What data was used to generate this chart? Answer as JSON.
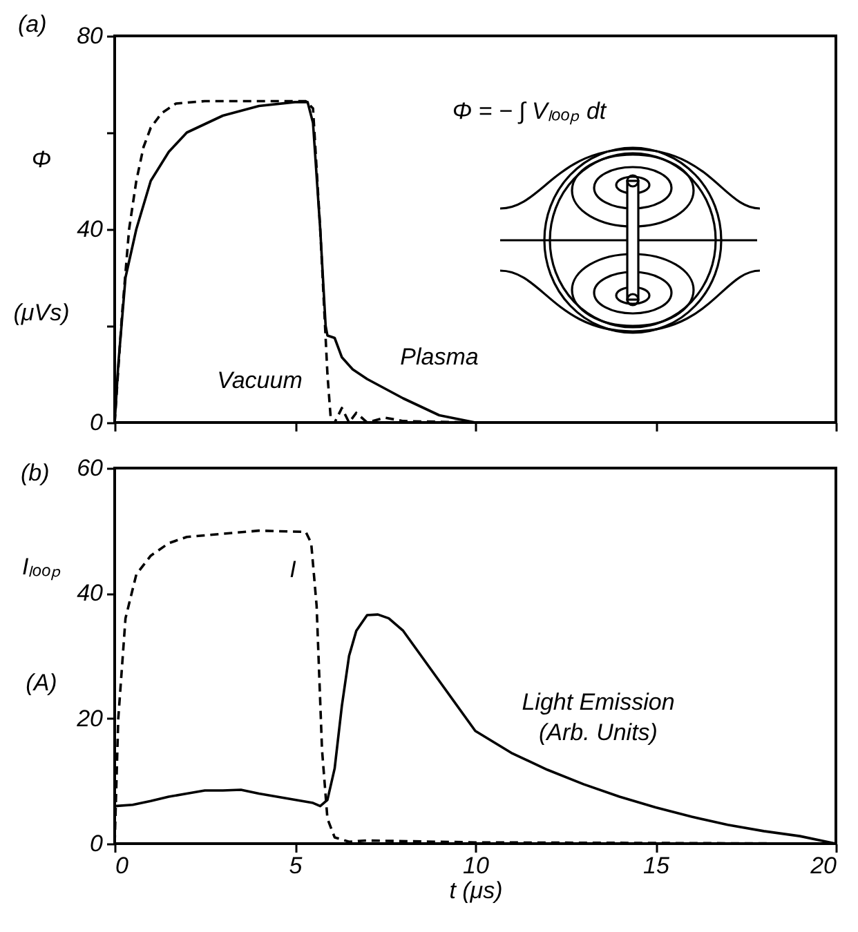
{
  "chart_data": [
    {
      "type": "line",
      "ylabel": "Φ (μVs)",
      "xlim": [
        0,
        20
      ],
      "xticks": [
        0,
        5,
        10,
        15,
        20
      ],
      "ylim": [
        0,
        80
      ],
      "yticks": [
        0,
        {
          "value": 20,
          "label": null
        },
        40,
        {
          "value": 60,
          "label": null
        },
        80
      ],
      "tick_labels": "y",
      "grid": false,
      "marker": "none",
      "annotations": [
        "(a)",
        "Φ = − ∫ Vₗₒₒₚ dt"
      ],
      "series": [
        {
          "name": "Vacuum",
          "color": "#000000",
          "line_style": "dashed",
          "x": [
            0,
            0.2,
            0.4,
            0.6,
            0.8,
            1.0,
            1.3,
            1.7,
            2.5,
            4,
            5.3,
            5.5,
            5.7,
            5.9,
            6.0,
            6.1,
            6.3,
            6.5,
            6.7,
            7,
            7.5,
            8,
            10,
            20
          ],
          "values": [
            0,
            22,
            40,
            50,
            57,
            61,
            64,
            66,
            66.5,
            66.5,
            66.5,
            65,
            40,
            10,
            0,
            0,
            3,
            0,
            2,
            0,
            1,
            0.3,
            0,
            0
          ]
        },
        {
          "name": "Plasma",
          "color": "#000000",
          "line_style": "solid",
          "x": [
            0,
            0.1,
            0.3,
            0.6,
            1,
            1.5,
            2,
            3,
            4,
            5,
            5.35,
            5.5,
            5.7,
            5.85,
            5.9,
            6.1,
            6.3,
            6.6,
            7,
            8,
            9,
            10,
            20
          ],
          "values": [
            0,
            12,
            30,
            40,
            50,
            56,
            60,
            63.5,
            65.5,
            66.3,
            66.3,
            62,
            40,
            20,
            18,
            17.5,
            13.5,
            11,
            9,
            5,
            1.5,
            0,
            0
          ]
        }
      ]
    },
    {
      "type": "line",
      "ylabel": "Iₗₒₒₚ (A)",
      "xlabel": "t  (μs)",
      "xlim": [
        0,
        20
      ],
      "xticks": [
        0,
        5,
        10,
        15,
        20
      ],
      "ylim": [
        0,
        60
      ],
      "yticks": [
        0,
        20,
        40,
        60
      ],
      "grid": false,
      "marker": "none",
      "annotations": [
        "(b)"
      ],
      "series": [
        {
          "name": "I",
          "color": "#000000",
          "line_style": "dashed",
          "x": [
            0,
            0.1,
            0.3,
            0.6,
            1,
            1.5,
            2,
            3,
            4,
            5.3,
            5.45,
            5.6,
            5.75,
            5.9,
            6.1,
            6.5,
            7,
            10,
            20
          ],
          "values": [
            0,
            20,
            36,
            43,
            46,
            48,
            49,
            49.5,
            50,
            49.8,
            48,
            38,
            15,
            4,
            1,
            0.3,
            0.5,
            0.2,
            0
          ]
        },
        {
          "name": "Light Emission (Arb. Units)",
          "color": "#000000",
          "line_style": "solid",
          "x": [
            0,
            0.5,
            1,
            1.5,
            2,
            2.5,
            3,
            3.5,
            4,
            5,
            5.5,
            5.7,
            5.9,
            6.1,
            6.3,
            6.5,
            6.7,
            7,
            7.3,
            7.6,
            8,
            9,
            10,
            11,
            12,
            13,
            14,
            15,
            16,
            17,
            18,
            19,
            20
          ],
          "values": [
            6,
            6.2,
            6.8,
            7.5,
            8,
            8.5,
            8.5,
            8.6,
            8,
            7,
            6.5,
            6,
            7,
            12,
            22,
            30,
            34,
            36.5,
            36.6,
            36,
            34,
            26,
            18,
            14.5,
            11.8,
            9.5,
            7.5,
            5.8,
            4.3,
            3,
            2,
            1.2,
            0
          ]
        }
      ]
    }
  ]
}
